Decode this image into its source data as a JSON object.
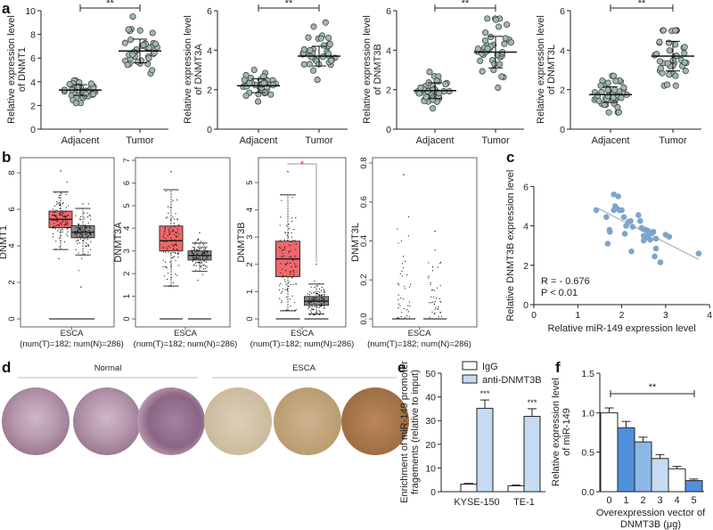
{
  "panel_letters": {
    "a": "a",
    "b": "b",
    "c": "c",
    "d": "d",
    "e": "e",
    "f": "f"
  },
  "colors": {
    "dot_fill": "#9fb8b2",
    "dot_stroke": "#333",
    "tumor_box": "#f0686a",
    "normal_box": "#8a8a8a",
    "scatter": "#7fa4cc",
    "line": "#aab4bf",
    "e_igg": "#ffffff",
    "e_anti": "#c5dbf2",
    "sig_red": "#e03030"
  },
  "chart_data": [
    {
      "panel": "a",
      "type": "scatter",
      "title": "",
      "ylabel": [
        "Relative expression level",
        "of DNMT1"
      ],
      "xlabel": "",
      "ylim": [
        0,
        10
      ],
      "yticks": [
        "0",
        "2",
        "4",
        "6",
        "8",
        "10"
      ],
      "significance": "**",
      "categories": [
        "Adjacent",
        "Tumor"
      ],
      "groups": [
        {
          "name": "Adjacent",
          "mean": 3.3,
          "sd": 0.45,
          "min": 2.2,
          "max": 4.1,
          "n": 40
        },
        {
          "name": "Tumor",
          "mean": 6.6,
          "sd": 1.0,
          "min": 4.7,
          "max": 9.5,
          "n": 40
        }
      ]
    },
    {
      "panel": "a",
      "type": "scatter",
      "title": "",
      "ylabel": [
        "Relative expression level",
        "of DNMT3A"
      ],
      "xlabel": "",
      "ylim": [
        0,
        6
      ],
      "yticks": [
        "0",
        "2",
        "4",
        "6"
      ],
      "significance": "**",
      "categories": [
        "Adjacent",
        "Tumor"
      ],
      "groups": [
        {
          "name": "Adjacent",
          "mean": 2.2,
          "sd": 0.35,
          "min": 1.4,
          "max": 3.0,
          "n": 40
        },
        {
          "name": "Tumor",
          "mean": 3.7,
          "sd": 0.5,
          "min": 2.5,
          "max": 5.4,
          "n": 40
        }
      ]
    },
    {
      "panel": "a",
      "type": "scatter",
      "title": "",
      "ylabel": [
        "Relative expression level",
        "of DNMT3B"
      ],
      "xlabel": "",
      "ylim": [
        0,
        6
      ],
      "yticks": [
        "0",
        "2",
        "4",
        "6"
      ],
      "significance": "**",
      "categories": [
        "Adjacent",
        "Tumor"
      ],
      "groups": [
        {
          "name": "Adjacent",
          "mean": 1.95,
          "sd": 0.4,
          "min": 1.05,
          "max": 2.9,
          "n": 40
        },
        {
          "name": "Tumor",
          "mean": 3.9,
          "sd": 0.8,
          "min": 2.1,
          "max": 5.6,
          "n": 40
        }
      ]
    },
    {
      "panel": "a",
      "type": "scatter",
      "title": "",
      "ylabel": [
        "Relative expression level",
        "of DNMT3L"
      ],
      "xlabel": "",
      "ylim": [
        0,
        6
      ],
      "yticks": [
        "0",
        "2",
        "4",
        "6"
      ],
      "significance": "**",
      "categories": [
        "Adjacent",
        "Tumor"
      ],
      "groups": [
        {
          "name": "Adjacent",
          "mean": 1.75,
          "sd": 0.4,
          "min": 0.85,
          "max": 2.7,
          "n": 40
        },
        {
          "name": "Tumor",
          "mean": 3.7,
          "sd": 0.75,
          "min": 2.2,
          "max": 5.0,
          "n": 40
        }
      ]
    },
    {
      "panel": "b",
      "type": "box",
      "ylabel": "DNMT1",
      "ylim": [
        0,
        8.5
      ],
      "yticks": [
        "0",
        "2",
        "4",
        "6",
        "8"
      ],
      "xlabel": [
        "ESCA",
        "(num(T)=182; num(N)=286)"
      ],
      "significance": "",
      "boxes": [
        {
          "name": "Tumor",
          "q1": 5.0,
          "median": 5.45,
          "q3": 5.9,
          "lo": 3.8,
          "hi": 6.95,
          "max": 8.1,
          "min": 3.3
        },
        {
          "name": "Normal",
          "q1": 4.45,
          "median": 4.75,
          "q3": 5.1,
          "lo": 3.5,
          "hi": 6.05,
          "max": 6.3,
          "min": 1.75
        }
      ]
    },
    {
      "panel": "b",
      "type": "box",
      "ylabel": "DNMT3A",
      "ylim": [
        0,
        7
      ],
      "yticks": [
        "0",
        "1",
        "2",
        "3",
        "4",
        "5",
        "6",
        "7"
      ],
      "xlabel": [
        "ESCA",
        "(num(T)=182; num(N)=286)"
      ],
      "significance": "",
      "boxes": [
        {
          "name": "Tumor",
          "q1": 3.0,
          "median": 3.45,
          "q3": 4.1,
          "lo": 1.45,
          "hi": 5.7,
          "max": 6.5,
          "min": 1.45
        },
        {
          "name": "Normal",
          "q1": 2.6,
          "median": 2.8,
          "q3": 3.0,
          "lo": 2.1,
          "hi": 3.35,
          "max": 3.8,
          "min": 1.7
        }
      ]
    },
    {
      "panel": "b",
      "type": "box",
      "ylabel": "DNMT3B",
      "ylim": [
        0,
        5.8
      ],
      "yticks": [
        "0",
        "1",
        "2",
        "3",
        "4",
        "5"
      ],
      "xlabel": [
        "ESCA",
        "(num(T)=182; num(N)=286)"
      ],
      "significance": "*",
      "boxes": [
        {
          "name": "Tumor",
          "q1": 1.55,
          "median": 2.2,
          "q3": 2.85,
          "lo": 0.3,
          "hi": 4.55,
          "max": 5.4,
          "min": 0.3
        },
        {
          "name": "Normal",
          "q1": 0.5,
          "median": 0.65,
          "q3": 0.82,
          "lo": 0.18,
          "hi": 1.28,
          "max": 2.0,
          "min": 0.15
        }
      ]
    },
    {
      "panel": "b",
      "type": "box",
      "ylabel": "DNMT3L",
      "ylim": [
        0,
        0.8
      ],
      "yticks": [
        "0.0",
        "0.2",
        "0.4",
        "0.6",
        "0.8"
      ],
      "xlabel": [
        "ESCA",
        "(num(T)=182; num(N)=286)"
      ],
      "significance": "",
      "boxes": [
        {
          "name": "Tumor",
          "q1": 0,
          "median": 0,
          "q3": 0,
          "lo": 0,
          "hi": 0,
          "max": 0.74,
          "min": 0
        },
        {
          "name": "Normal",
          "q1": 0,
          "median": 0,
          "q3": 0,
          "lo": 0,
          "hi": 0,
          "max": 0.45,
          "min": 0
        }
      ]
    },
    {
      "panel": "c",
      "type": "scatter",
      "xlabel": "Relative miR-149 expression level",
      "ylabel": "Relative DNMT3B expression level",
      "xlim": [
        0,
        4
      ],
      "ylim": [
        0,
        6
      ],
      "xticks": [
        "0",
        "1",
        "2",
        "3",
        "4"
      ],
      "yticks": [
        "0",
        "2",
        "4",
        "6"
      ],
      "annotations": [
        "R = - 0.676",
        "P < 0.01"
      ],
      "fit": [
        [
          1.45,
          4.9
        ],
        [
          3.75,
          2.3
        ]
      ],
      "points": [
        [
          1.42,
          4.8
        ],
        [
          1.65,
          4.45
        ],
        [
          1.68,
          3.1
        ],
        [
          1.72,
          3.8
        ],
        [
          1.73,
          3.7
        ],
        [
          1.82,
          5.6
        ],
        [
          1.82,
          4.8
        ],
        [
          1.85,
          5.0
        ],
        [
          1.88,
          4.9
        ],
        [
          1.92,
          5.5
        ],
        [
          1.95,
          4.8
        ],
        [
          2.0,
          4.8
        ],
        [
          2.05,
          4.45
        ],
        [
          2.07,
          3.6
        ],
        [
          2.1,
          4.0
        ],
        [
          2.15,
          4.2
        ],
        [
          2.2,
          4.25
        ],
        [
          2.22,
          2.7
        ],
        [
          2.25,
          3.95
        ],
        [
          2.38,
          4.55
        ],
        [
          2.42,
          4.25
        ],
        [
          2.45,
          3.9
        ],
        [
          2.48,
          3.85
        ],
        [
          2.5,
          3.5
        ],
        [
          2.5,
          3.25
        ],
        [
          2.55,
          3.4
        ],
        [
          2.55,
          3.8
        ],
        [
          2.6,
          3.75
        ],
        [
          2.6,
          3.5
        ],
        [
          2.65,
          3.3
        ],
        [
          2.7,
          3.65
        ],
        [
          2.72,
          3.7
        ],
        [
          2.75,
          2.45
        ],
        [
          2.78,
          2.85
        ],
        [
          2.78,
          3.35
        ],
        [
          2.88,
          2.15
        ],
        [
          3.0,
          3.55
        ],
        [
          3.08,
          3.45
        ],
        [
          3.75,
          2.6
        ]
      ]
    },
    {
      "panel": "e",
      "type": "bar",
      "ylabel": [
        "Enrichment of miR-149 promoter",
        "fragements (relative to input)"
      ],
      "ylim": [
        0,
        50
      ],
      "yticks": [
        "0",
        "10",
        "20",
        "30",
        "40",
        "50"
      ],
      "categories": [
        "KYSE-150",
        "TE-1"
      ],
      "series": [
        {
          "name": "IgG",
          "values": [
            3.2,
            2.5
          ],
          "errors": [
            0.3,
            0.3
          ]
        },
        {
          "name": "anti-DNMT3B",
          "values": [
            35.2,
            31.8
          ],
          "errors": [
            3.5,
            3.2
          ]
        }
      ],
      "significance": [
        "***",
        "***"
      ]
    },
    {
      "panel": "f",
      "type": "bar",
      "ylabel": [
        "Relative expression level",
        "of miR-149"
      ],
      "xlabel": [
        "Overexpression vector of",
        "DNMT3B (μg)"
      ],
      "ylim": [
        0,
        1.5
      ],
      "yticks": [
        "0.0",
        "0.5",
        "1.0",
        "1.5"
      ],
      "categories": [
        "0",
        "1",
        "2",
        "3",
        "4",
        "5"
      ],
      "values": [
        1.0,
        0.81,
        0.63,
        0.42,
        0.29,
        0.14
      ],
      "errors": [
        0.06,
        0.08,
        0.06,
        0.05,
        0.03,
        0.02
      ],
      "bar_colors": [
        "#ffffff",
        "#4f8fdc",
        "#8cb8e8",
        "#c6dcf3",
        "#ffffff",
        "#4f8fdc"
      ],
      "significance": "**"
    }
  ],
  "panel_d": {
    "group_labels": [
      "Normal",
      "ESCA"
    ]
  }
}
